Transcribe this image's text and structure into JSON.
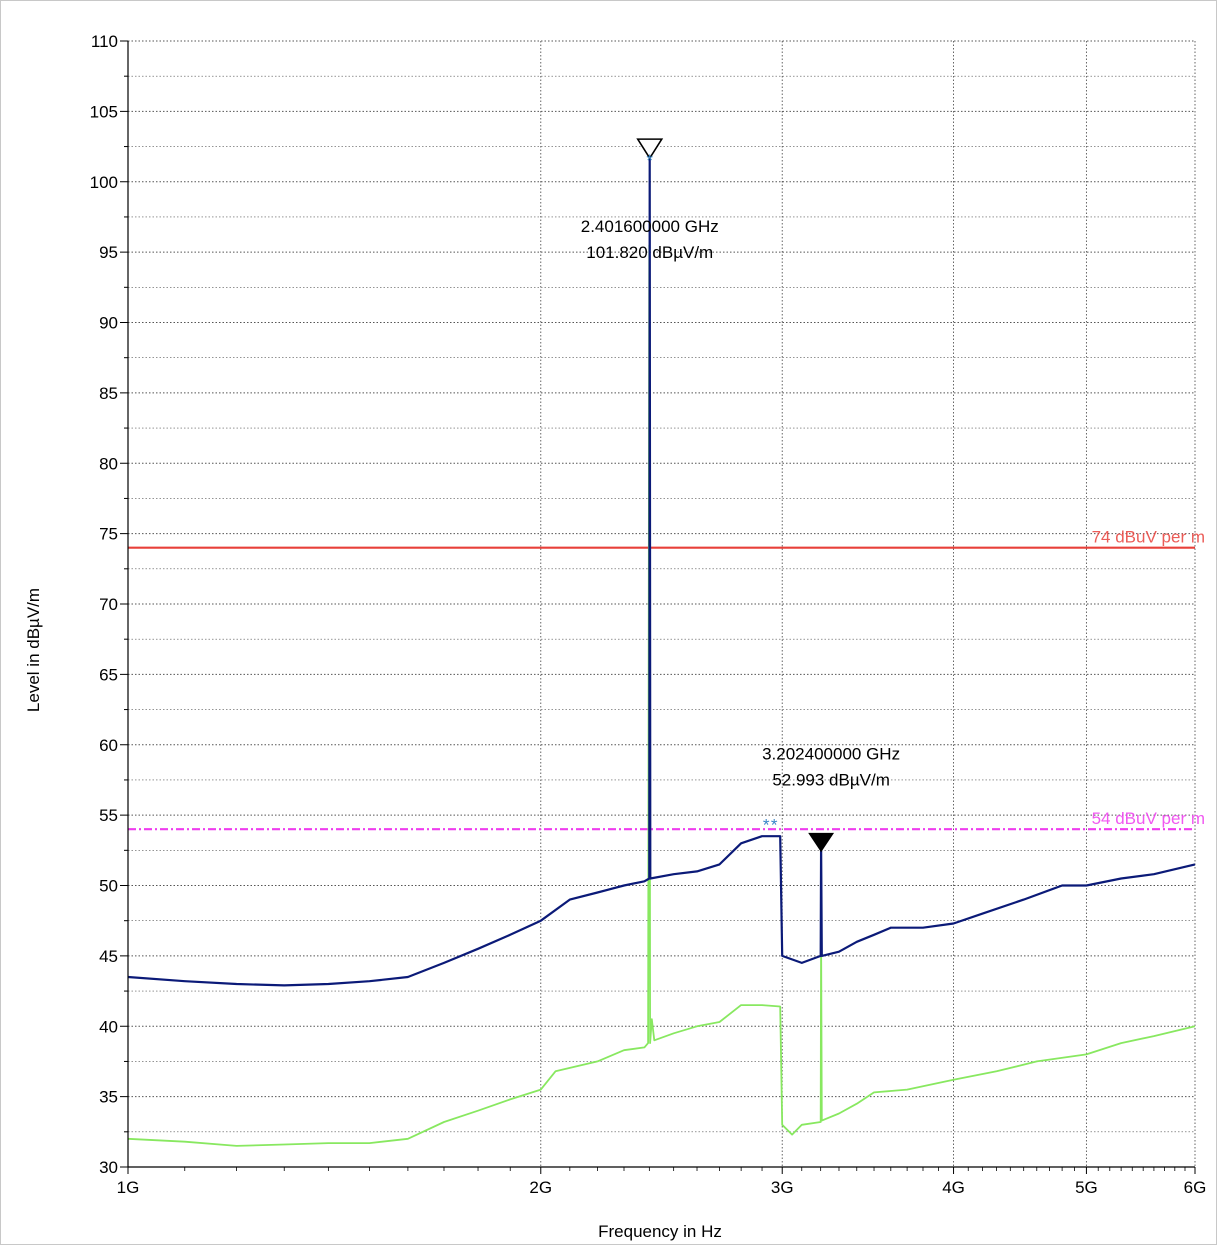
{
  "chart_data": {
    "type": "line",
    "xlabel": "Frequency in Hz",
    "ylabel": "Level in dBµV/m",
    "xscale": "log",
    "xlim": [
      1000000000,
      6000000000
    ],
    "ylim": [
      30,
      110
    ],
    "x_ticks": [
      {
        "value": 1000000000,
        "label": "1G"
      },
      {
        "value": 2000000000,
        "label": "2G"
      },
      {
        "value": 3000000000,
        "label": "3G"
      },
      {
        "value": 4000000000,
        "label": "4G"
      },
      {
        "value": 5000000000,
        "label": "5G"
      },
      {
        "value": 6000000000,
        "label": "6G"
      }
    ],
    "y_ticks": [
      30,
      35,
      40,
      45,
      50,
      55,
      60,
      65,
      70,
      75,
      80,
      85,
      90,
      95,
      100,
      105,
      110
    ],
    "grid": true,
    "limit_lines": [
      {
        "label": "74 dBuV per m",
        "value": 74,
        "color": "#e8403a",
        "style": "solid"
      },
      {
        "label": "54 dBuV per m",
        "value": 54,
        "color": "#ee3cee",
        "style": "dashdot"
      }
    ],
    "series": [
      {
        "color": "#0b1a78",
        "points": [
          [
            1000000000,
            43.5
          ],
          [
            1100000000,
            43.2
          ],
          [
            1200000000,
            43.0
          ],
          [
            1300000000,
            42.9
          ],
          [
            1400000000,
            43.0
          ],
          [
            1500000000,
            43.2
          ],
          [
            1600000000,
            43.5
          ],
          [
            1700000000,
            44.5
          ],
          [
            1800000000,
            45.5
          ],
          [
            1900000000,
            46.5
          ],
          [
            2000000000,
            47.5
          ],
          [
            2100000000,
            49.0
          ],
          [
            2200000000,
            49.5
          ],
          [
            2300000000,
            50.0
          ],
          [
            2380000000,
            50.3
          ],
          [
            2400000000,
            50.5
          ],
          [
            2401600000,
            101.82
          ],
          [
            2404000000,
            50.5
          ],
          [
            2500000000,
            50.8
          ],
          [
            2600000000,
            51.0
          ],
          [
            2700000000,
            51.5
          ],
          [
            2800000000,
            53.0
          ],
          [
            2900000000,
            53.5
          ],
          [
            2990000000,
            53.5
          ],
          [
            3000000000,
            45.0
          ],
          [
            3100000000,
            44.5
          ],
          [
            3200000000,
            45.0
          ],
          [
            3202400000,
            52.993
          ],
          [
            3206000000,
            45.0
          ],
          [
            3300000000,
            45.3
          ],
          [
            3400000000,
            46.0
          ],
          [
            3500000000,
            46.5
          ],
          [
            3600000000,
            47.0
          ],
          [
            3800000000,
            47.0
          ],
          [
            4000000000,
            47.3
          ],
          [
            4200000000,
            48.0
          ],
          [
            4500000000,
            49.0
          ],
          [
            4800000000,
            50.0
          ],
          [
            5000000000,
            50.0
          ],
          [
            5300000000,
            50.5
          ],
          [
            5600000000,
            50.8
          ],
          [
            6000000000,
            51.5
          ]
        ]
      },
      {
        "color": "#88e860",
        "points": [
          [
            1000000000,
            32.0
          ],
          [
            1100000000,
            31.8
          ],
          [
            1200000000,
            31.5
          ],
          [
            1300000000,
            31.6
          ],
          [
            1400000000,
            31.7
          ],
          [
            1500000000,
            31.7
          ],
          [
            1600000000,
            32.0
          ],
          [
            1700000000,
            33.2
          ],
          [
            1800000000,
            34.0
          ],
          [
            1900000000,
            34.8
          ],
          [
            2000000000,
            35.5
          ],
          [
            2050000000,
            36.8
          ],
          [
            2200000000,
            37.5
          ],
          [
            2300000000,
            38.3
          ],
          [
            2380000000,
            38.5
          ],
          [
            2395000000,
            38.8
          ],
          [
            2400000000,
            95.5
          ],
          [
            2403000000,
            38.8
          ],
          [
            2410000000,
            40.5
          ],
          [
            2420000000,
            39.0
          ],
          [
            2500000000,
            39.5
          ],
          [
            2600000000,
            40.0
          ],
          [
            2700000000,
            40.3
          ],
          [
            2800000000,
            41.5
          ],
          [
            2900000000,
            41.5
          ],
          [
            2990000000,
            41.4
          ],
          [
            3000000000,
            33.0
          ],
          [
            3050000000,
            32.3
          ],
          [
            3100000000,
            33.0
          ],
          [
            3200000000,
            33.2
          ],
          [
            3202400000,
            46.5
          ],
          [
            3206000000,
            33.3
          ],
          [
            3300000000,
            33.8
          ],
          [
            3400000000,
            34.5
          ],
          [
            3500000000,
            35.3
          ],
          [
            3700000000,
            35.5
          ],
          [
            4000000000,
            36.2
          ],
          [
            4300000000,
            36.8
          ],
          [
            4600000000,
            37.5
          ],
          [
            5000000000,
            38.0
          ],
          [
            5300000000,
            38.8
          ],
          [
            5600000000,
            39.3
          ],
          [
            6000000000,
            40.0
          ]
        ]
      }
    ],
    "markers": [
      {
        "x": 2401600000,
        "y": 101.82,
        "style": "hollow-triangle",
        "freq_label": "2.401600000 GHz",
        "level_label": "101.820 dBµV/m"
      },
      {
        "x": 3202400000,
        "y": 52.993,
        "style": "filled-triangle",
        "freq_label": "3.202400000 GHz",
        "level_label": "52.993 dBµV/m"
      }
    ]
  }
}
